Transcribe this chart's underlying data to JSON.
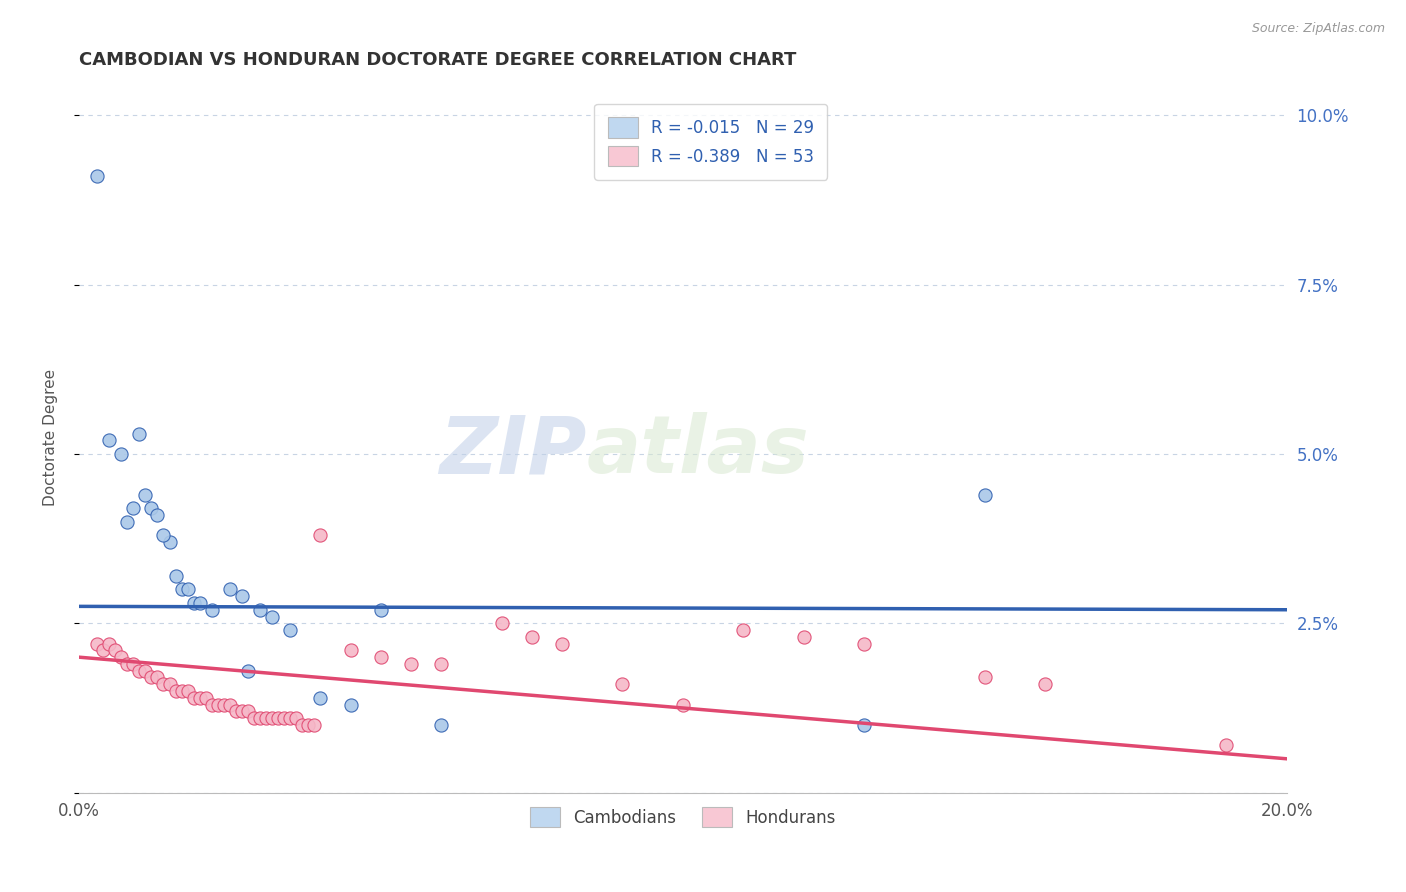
{
  "title": "CAMBODIAN VS HONDURAN DOCTORATE DEGREE CORRELATION CHART",
  "source": "Source: ZipAtlas.com",
  "ylabel": "Doctorate Degree",
  "xlim": [
    0.0,
    0.2
  ],
  "ylim": [
    0.0,
    0.105
  ],
  "yticks": [
    0.0,
    0.025,
    0.05,
    0.075,
    0.1
  ],
  "xticks": [
    0.0,
    0.05,
    0.1,
    0.15,
    0.2
  ],
  "xtick_labels": [
    "0.0%",
    "",
    "",
    "",
    "20.0%"
  ],
  "right_ytick_labels": [
    "2.5%",
    "5.0%",
    "7.5%",
    "10.0%"
  ],
  "right_yticks": [
    0.025,
    0.05,
    0.075,
    0.1
  ],
  "cambodian_color": "#aac8e8",
  "honduran_color": "#f5b8c8",
  "cambodian_line_color": "#3060b0",
  "honduran_line_color": "#e04870",
  "legend_box_color_cambodian": "#c0d8f0",
  "legend_box_color_honduran": "#f8c8d4",
  "background_color": "#ffffff",
  "grid_color": "#c8d4e4",
  "watermark_zip": "ZIP",
  "watermark_atlas": "atlas",
  "R_cambodian": -0.015,
  "N_cambodian": 29,
  "R_honduran": -0.389,
  "N_honduran": 53,
  "cambodian_x": [
    0.003,
    0.005,
    0.007,
    0.009,
    0.01,
    0.011,
    0.012,
    0.013,
    0.015,
    0.016,
    0.017,
    0.018,
    0.019,
    0.02,
    0.022,
    0.025,
    0.027,
    0.03,
    0.032,
    0.035,
    0.04,
    0.045,
    0.05,
    0.06,
    0.13,
    0.15,
    0.008,
    0.014,
    0.028
  ],
  "cambodian_y": [
    0.091,
    0.052,
    0.05,
    0.042,
    0.053,
    0.044,
    0.042,
    0.041,
    0.037,
    0.032,
    0.03,
    0.03,
    0.028,
    0.028,
    0.027,
    0.03,
    0.029,
    0.027,
    0.026,
    0.024,
    0.014,
    0.013,
    0.027,
    0.01,
    0.01,
    0.044,
    0.04,
    0.038,
    0.018
  ],
  "honduran_x": [
    0.003,
    0.004,
    0.005,
    0.006,
    0.007,
    0.008,
    0.009,
    0.01,
    0.011,
    0.012,
    0.013,
    0.014,
    0.015,
    0.016,
    0.017,
    0.018,
    0.019,
    0.02,
    0.021,
    0.022,
    0.023,
    0.024,
    0.025,
    0.026,
    0.027,
    0.028,
    0.029,
    0.03,
    0.031,
    0.032,
    0.033,
    0.034,
    0.035,
    0.036,
    0.037,
    0.038,
    0.039,
    0.04,
    0.045,
    0.05,
    0.055,
    0.06,
    0.07,
    0.075,
    0.08,
    0.09,
    0.1,
    0.11,
    0.12,
    0.13,
    0.15,
    0.16,
    0.19
  ],
  "honduran_y": [
    0.022,
    0.021,
    0.022,
    0.021,
    0.02,
    0.019,
    0.019,
    0.018,
    0.018,
    0.017,
    0.017,
    0.016,
    0.016,
    0.015,
    0.015,
    0.015,
    0.014,
    0.014,
    0.014,
    0.013,
    0.013,
    0.013,
    0.013,
    0.012,
    0.012,
    0.012,
    0.011,
    0.011,
    0.011,
    0.011,
    0.011,
    0.011,
    0.011,
    0.011,
    0.01,
    0.01,
    0.01,
    0.038,
    0.021,
    0.02,
    0.019,
    0.019,
    0.025,
    0.023,
    0.022,
    0.016,
    0.013,
    0.024,
    0.023,
    0.022,
    0.017,
    0.016,
    0.007
  ],
  "blue_line_x": [
    0.0,
    0.2
  ],
  "blue_line_y": [
    0.0275,
    0.027
  ],
  "pink_line_x": [
    0.0,
    0.2
  ],
  "pink_line_y": [
    0.02,
    0.005
  ]
}
